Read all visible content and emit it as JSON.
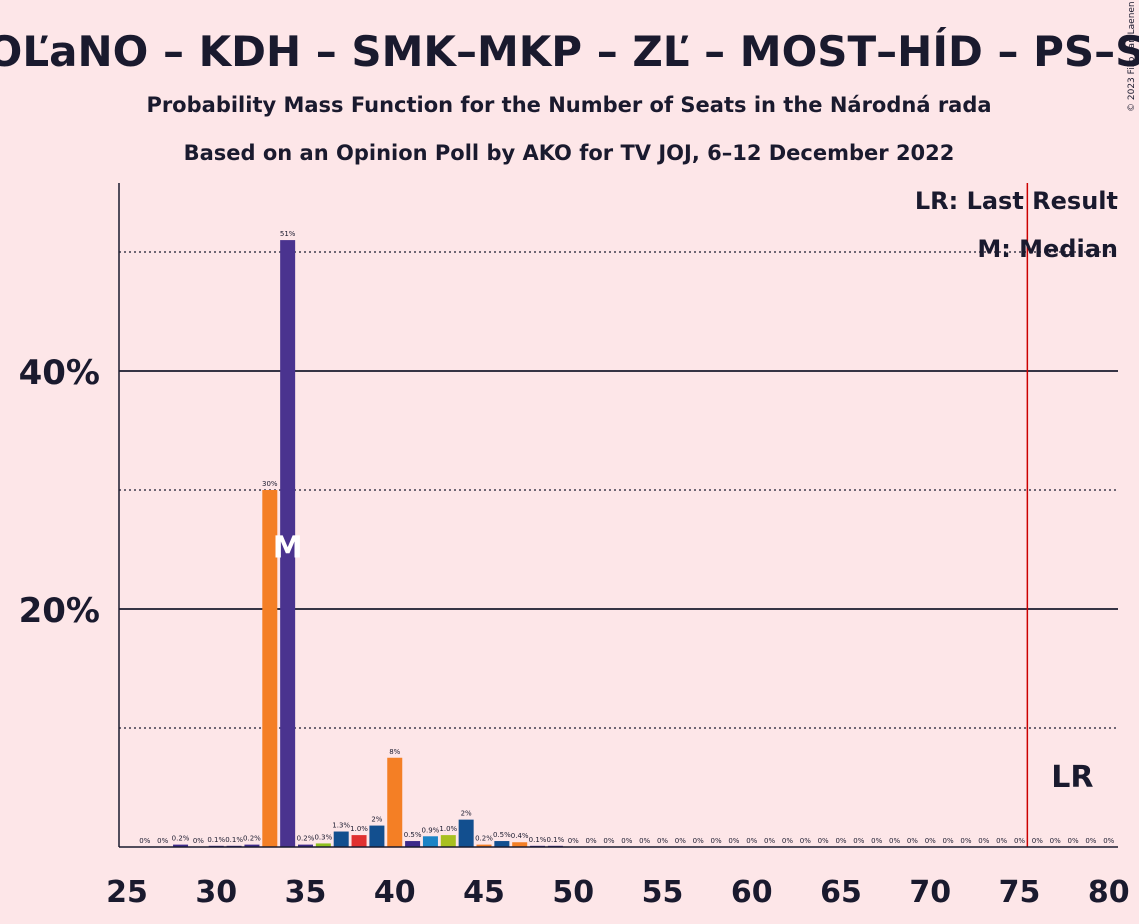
{
  "header": {
    "title": "OĽaNO – KDH – SMK–MKP – ZĽ – MOST–HÍD – PS–S",
    "subtitle1": "Probability Mass Function for the Number of Seats in the Národná rada",
    "subtitle2": "Based on an Opinion Poll by AKO for TV JOJ, 6–12 December 2022",
    "copyright": "© 2023 Filip van Laenen"
  },
  "legend": {
    "lr": "LR: Last Result",
    "median": "M: Median"
  },
  "markers": {
    "lr_label": "LR",
    "median_label": "M"
  },
  "colors": {
    "background": "#fde6e8",
    "text": "#1a1a2e",
    "lr_line": "#cc0000"
  },
  "chart_data": {
    "type": "bar",
    "title": "OĽaNO – KDH – SMK–MKP – ZĽ – MOST–HÍD – PS–S",
    "xlabel": "",
    "ylabel": "",
    "xlim": [
      25,
      80
    ],
    "ylim": [
      0,
      56
    ],
    "x_ticks": [
      25,
      30,
      35,
      40,
      45,
      50,
      55,
      60,
      65,
      70,
      75,
      80
    ],
    "y_ticks": [
      {
        "value": 20,
        "label": "20%"
      },
      {
        "value": 40,
        "label": "40%"
      }
    ],
    "grid_solid": [
      20,
      40
    ],
    "grid_dotted": [
      10,
      30,
      50
    ],
    "last_result": 76,
    "median": 34,
    "bars": [
      {
        "x": 26,
        "value": 0,
        "label": "0%",
        "color": "#3d2a8a"
      },
      {
        "x": 27,
        "value": 0,
        "label": "0%",
        "color": "#3d2a8a"
      },
      {
        "x": 28,
        "value": 0.2,
        "label": "0.2%",
        "color": "#3d2a8a"
      },
      {
        "x": 29,
        "value": 0,
        "label": "0%",
        "color": "#3d2a8a"
      },
      {
        "x": 30,
        "value": 0.1,
        "label": "0.1%",
        "color": "#3d2a8a"
      },
      {
        "x": 31,
        "value": 0.1,
        "label": "0.1%",
        "color": "#3d2a8a"
      },
      {
        "x": 32,
        "value": 0.2,
        "label": "0.2%",
        "color": "#3d2a8a"
      },
      {
        "x": 33,
        "value": 30,
        "label": "30%",
        "color": "#f47f25"
      },
      {
        "x": 34,
        "value": 51,
        "label": "51%",
        "color": "#4a338f"
      },
      {
        "x": 35,
        "value": 0.2,
        "label": "0.2%",
        "color": "#3d2a8a"
      },
      {
        "x": 36,
        "value": 0.3,
        "label": "0.3%",
        "color": "#8fbf1f"
      },
      {
        "x": 37,
        "value": 1.3,
        "label": "1.3%",
        "color": "#124f8f"
      },
      {
        "x": 38,
        "value": 1.0,
        "label": "1.0%",
        "color": "#e03030"
      },
      {
        "x": 39,
        "value": 1.8,
        "label": "2%",
        "color": "#124f8f"
      },
      {
        "x": 40,
        "value": 7.5,
        "label": "8%",
        "color": "#f47f25"
      },
      {
        "x": 41,
        "value": 0.5,
        "label": "0.5%",
        "color": "#3d2a8a"
      },
      {
        "x": 42,
        "value": 0.9,
        "label": "0.9%",
        "color": "#1c84c6"
      },
      {
        "x": 43,
        "value": 1.0,
        "label": "1.0%",
        "color": "#a8c020"
      },
      {
        "x": 44,
        "value": 2.3,
        "label": "2%",
        "color": "#124f8f"
      },
      {
        "x": 45,
        "value": 0.2,
        "label": "0.2%",
        "color": "#f47f25"
      },
      {
        "x": 46,
        "value": 0.5,
        "label": "0.5%",
        "color": "#124f8f"
      },
      {
        "x": 47,
        "value": 0.4,
        "label": "0.4%",
        "color": "#f47f25"
      },
      {
        "x": 48,
        "value": 0.1,
        "label": "0.1%",
        "color": "#3d2a8a"
      },
      {
        "x": 49,
        "value": 0.1,
        "label": "0.1%",
        "color": "#3d2a8a"
      },
      {
        "x": 50,
        "value": 0,
        "label": "0%",
        "color": "#3d2a8a"
      },
      {
        "x": 51,
        "value": 0,
        "label": "0%",
        "color": "#3d2a8a"
      },
      {
        "x": 52,
        "value": 0,
        "label": "0%",
        "color": "#3d2a8a"
      },
      {
        "x": 53,
        "value": 0,
        "label": "0%",
        "color": "#3d2a8a"
      },
      {
        "x": 54,
        "value": 0,
        "label": "0%",
        "color": "#3d2a8a"
      },
      {
        "x": 55,
        "value": 0,
        "label": "0%",
        "color": "#3d2a8a"
      },
      {
        "x": 56,
        "value": 0,
        "label": "0%",
        "color": "#3d2a8a"
      },
      {
        "x": 57,
        "value": 0,
        "label": "0%",
        "color": "#3d2a8a"
      },
      {
        "x": 58,
        "value": 0,
        "label": "0%",
        "color": "#3d2a8a"
      },
      {
        "x": 59,
        "value": 0,
        "label": "0%",
        "color": "#3d2a8a"
      },
      {
        "x": 60,
        "value": 0,
        "label": "0%",
        "color": "#3d2a8a"
      },
      {
        "x": 61,
        "value": 0,
        "label": "0%",
        "color": "#3d2a8a"
      },
      {
        "x": 62,
        "value": 0,
        "label": "0%",
        "color": "#3d2a8a"
      },
      {
        "x": 63,
        "value": 0,
        "label": "0%",
        "color": "#3d2a8a"
      },
      {
        "x": 64,
        "value": 0,
        "label": "0%",
        "color": "#3d2a8a"
      },
      {
        "x": 65,
        "value": 0,
        "label": "0%",
        "color": "#3d2a8a"
      },
      {
        "x": 66,
        "value": 0,
        "label": "0%",
        "color": "#3d2a8a"
      },
      {
        "x": 67,
        "value": 0,
        "label": "0%",
        "color": "#3d2a8a"
      },
      {
        "x": 68,
        "value": 0,
        "label": "0%",
        "color": "#3d2a8a"
      },
      {
        "x": 69,
        "value": 0,
        "label": "0%",
        "color": "#3d2a8a"
      },
      {
        "x": 70,
        "value": 0,
        "label": "0%",
        "color": "#3d2a8a"
      },
      {
        "x": 71,
        "value": 0,
        "label": "0%",
        "color": "#3d2a8a"
      },
      {
        "x": 72,
        "value": 0,
        "label": "0%",
        "color": "#3d2a8a"
      },
      {
        "x": 73,
        "value": 0,
        "label": "0%",
        "color": "#3d2a8a"
      },
      {
        "x": 74,
        "value": 0,
        "label": "0%",
        "color": "#3d2a8a"
      },
      {
        "x": 75,
        "value": 0,
        "label": "0%",
        "color": "#3d2a8a"
      },
      {
        "x": 76,
        "value": 0,
        "label": "0%",
        "color": "#3d2a8a"
      },
      {
        "x": 77,
        "value": 0,
        "label": "0%",
        "color": "#3d2a8a"
      },
      {
        "x": 78,
        "value": 0,
        "label": "0%",
        "color": "#3d2a8a"
      },
      {
        "x": 79,
        "value": 0,
        "label": "0%",
        "color": "#3d2a8a"
      },
      {
        "x": 80,
        "value": 0,
        "label": "0%",
        "color": "#3d2a8a"
      }
    ]
  }
}
